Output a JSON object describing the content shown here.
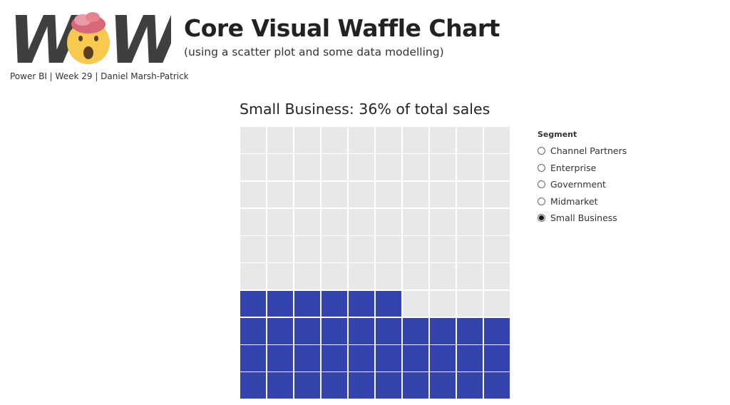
{
  "header": {
    "logo_text": "WOW",
    "title": "Core Visual Waffle Chart",
    "subtitle": "(using a scatter plot and some data modelling)",
    "byline": "Power BI | Week 29 | Daniel Marsh-Patrick"
  },
  "slicer": {
    "title": "Segment",
    "options": [
      {
        "label": "Channel Partners",
        "selected": false
      },
      {
        "label": "Enterprise",
        "selected": false
      },
      {
        "label": "Government",
        "selected": false
      },
      {
        "label": "Midmarket",
        "selected": false
      },
      {
        "label": "Small Business",
        "selected": true
      }
    ]
  },
  "chart_data": {
    "type": "heatmap",
    "title": "Small Business: 36% of total sales",
    "rows": 10,
    "columns": 10,
    "filled_cells": 36,
    "total_cells": 100,
    "percent": 36,
    "fill_order": "bottom-left upward by row",
    "colors": {
      "filled": "#3443ad",
      "empty": "#e8e8e8"
    }
  }
}
